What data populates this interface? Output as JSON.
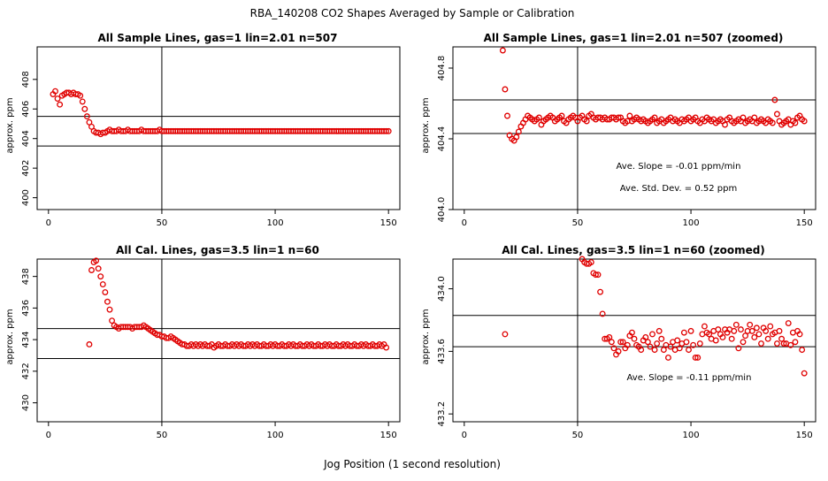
{
  "figure": {
    "title": "RBA_140208  CO2 Shapes Averaged by Sample or Calibration",
    "xlabel": "Jog Position (1 second resolution)"
  },
  "chart_data": [
    {
      "type": "scatter",
      "title": "All Sample Lines, gas=1 lin=2.01 n=507",
      "ylabel": "approx. ppm",
      "xlim": [
        -5,
        155
      ],
      "ylim": [
        399.2,
        410.2
      ],
      "xticks": [
        0,
        50,
        100,
        150
      ],
      "yticks": [
        400,
        402,
        404,
        406,
        408
      ],
      "vline": 50,
      "hlines": [
        403.5,
        405.5
      ],
      "annotations": [],
      "marker_color": "#e00000",
      "series": [
        {
          "name": "sample",
          "x_start": 2,
          "values": [
            407.0,
            407.2,
            406.7,
            406.3,
            406.9,
            407.0,
            407.1,
            407.1,
            407.0,
            407.1,
            407.0,
            407.0,
            406.9,
            406.5,
            406.0,
            405.5,
            405.1,
            404.8,
            404.5,
            404.4,
            404.4,
            404.3,
            404.4,
            404.4,
            404.5,
            404.6,
            404.5,
            404.5,
            404.5,
            404.6,
            404.5,
            404.5,
            404.5,
            404.6,
            404.5,
            404.5,
            404.5,
            404.5,
            404.5,
            404.6,
            404.5,
            404.5,
            404.5,
            404.5,
            404.5,
            404.5,
            404.5,
            404.6,
            404.5,
            404.5,
            404.5,
            404.5,
            404.5,
            404.5,
            404.5,
            404.5,
            404.5,
            404.5,
            404.5,
            404.5,
            404.5,
            404.5,
            404.5,
            404.5,
            404.5,
            404.5,
            404.5,
            404.5,
            404.5,
            404.5,
            404.5,
            404.5,
            404.5,
            404.5,
            404.5,
            404.5,
            404.5,
            404.5,
            404.5,
            404.5,
            404.5,
            404.5,
            404.5,
            404.5,
            404.5,
            404.5,
            404.5,
            404.5,
            404.5,
            404.5,
            404.5,
            404.5,
            404.5,
            404.5,
            404.5,
            404.5,
            404.5,
            404.5,
            404.5,
            404.5,
            404.5,
            404.5,
            404.5,
            404.5,
            404.5,
            404.5,
            404.5,
            404.5,
            404.5,
            404.5,
            404.5,
            404.5,
            404.5,
            404.5,
            404.5,
            404.5,
            404.5,
            404.5,
            404.5,
            404.5,
            404.5,
            404.5,
            404.5,
            404.5,
            404.5,
            404.5,
            404.5,
            404.5,
            404.5,
            404.5,
            404.5,
            404.5,
            404.5,
            404.5,
            404.5,
            404.5,
            404.5,
            404.5,
            404.5,
            404.5,
            404.5,
            404.5,
            404.5,
            404.5,
            404.5,
            404.5,
            404.5,
            404.5,
            404.5
          ]
        }
      ]
    },
    {
      "type": "scatter",
      "title": "All Sample Lines, gas=1 lin=2.01 n=507 (zoomed)",
      "ylabel": "approx. ppm",
      "xlim": [
        -5,
        155
      ],
      "ylim": [
        404.0,
        404.92
      ],
      "xticks": [
        0,
        50,
        100,
        150
      ],
      "yticks": [
        404.0,
        404.4,
        404.8
      ],
      "vline": 50,
      "hlines": [
        404.43,
        404.62
      ],
      "annotations": [
        "Ave. Slope =  -0.01  ppm/min",
        "Ave. Std. Dev. =  0.52  ppm"
      ],
      "marker_color": "#e00000",
      "series": [
        {
          "name": "sample zoomed",
          "x_start": 17,
          "values": [
            404.9,
            404.68,
            404.53,
            404.42,
            404.4,
            404.39,
            404.41,
            404.44,
            404.47,
            404.49,
            404.51,
            404.53,
            404.52,
            404.51,
            404.5,
            404.51,
            404.52,
            404.48,
            404.5,
            404.51,
            404.52,
            404.53,
            404.52,
            404.5,
            404.51,
            404.52,
            404.53,
            404.5,
            404.49,
            404.51,
            404.52,
            404.53,
            404.52,
            404.5,
            404.52,
            404.53,
            404.51,
            404.5,
            404.53,
            404.54,
            404.52,
            404.51,
            404.52,
            404.52,
            404.51,
            404.52,
            404.51,
            404.51,
            404.52,
            404.52,
            404.51,
            404.52,
            404.52,
            404.5,
            404.49,
            404.5,
            404.53,
            404.5,
            404.51,
            404.52,
            404.51,
            404.5,
            404.51,
            404.5,
            404.49,
            404.5,
            404.51,
            404.52,
            404.49,
            404.5,
            404.51,
            404.49,
            404.5,
            404.51,
            404.52,
            404.5,
            404.51,
            404.5,
            404.49,
            404.51,
            404.5,
            404.51,
            404.52,
            404.5,
            404.51,
            404.52,
            404.5,
            404.49,
            404.51,
            404.5,
            404.52,
            404.51,
            404.5,
            404.51,
            404.49,
            404.5,
            404.51,
            404.5,
            404.48,
            404.51,
            404.52,
            404.5,
            404.49,
            404.5,
            404.51,
            404.5,
            404.52,
            404.49,
            404.5,
            404.51,
            404.5,
            404.52,
            404.49,
            404.5,
            404.51,
            404.5,
            404.49,
            404.51,
            404.5,
            404.49,
            404.62,
            404.54,
            404.5,
            404.48,
            404.49,
            404.5,
            404.51,
            404.48,
            404.5,
            404.49,
            404.52,
            404.53,
            404.51,
            404.5
          ]
        }
      ]
    },
    {
      "type": "scatter",
      "title": "All Cal. Lines, gas=3.5 lin=1 n=60",
      "ylabel": "approx. ppm",
      "xlim": [
        -5,
        155
      ],
      "ylim": [
        428.8,
        439.1
      ],
      "xticks": [
        0,
        50,
        100,
        150
      ],
      "yticks": [
        430,
        432,
        434,
        436,
        438
      ],
      "vline": 50,
      "hlines": [
        432.8,
        434.7
      ],
      "annotations": [],
      "marker_color": "#e00000",
      "series": [
        {
          "name": "cal",
          "x_start": 18,
          "values": [
            433.7,
            438.4,
            438.9,
            439.0,
            438.5,
            438.0,
            437.5,
            437.0,
            436.4,
            435.9,
            435.2,
            434.9,
            434.8,
            434.7,
            434.8,
            434.8,
            434.8,
            434.8,
            434.8,
            434.7,
            434.8,
            434.8,
            434.8,
            434.8,
            434.9,
            434.8,
            434.7,
            434.6,
            434.5,
            434.4,
            434.3,
            434.3,
            434.2,
            434.2,
            434.1,
            434.1,
            434.2,
            434.1,
            434.0,
            433.9,
            433.8,
            433.7,
            433.7,
            433.6,
            433.6,
            433.7,
            433.6,
            433.7,
            433.6,
            433.7,
            433.6,
            433.7,
            433.6,
            433.6,
            433.7,
            433.5,
            433.6,
            433.7,
            433.6,
            433.6,
            433.7,
            433.6,
            433.6,
            433.7,
            433.6,
            433.7,
            433.6,
            433.7,
            433.6,
            433.6,
            433.7,
            433.6,
            433.7,
            433.6,
            433.7,
            433.6,
            433.6,
            433.7,
            433.6,
            433.6,
            433.7,
            433.6,
            433.7,
            433.6,
            433.6,
            433.7,
            433.6,
            433.6,
            433.7,
            433.6,
            433.7,
            433.6,
            433.6,
            433.7,
            433.6,
            433.6,
            433.7,
            433.6,
            433.7,
            433.6,
            433.6,
            433.7,
            433.6,
            433.6,
            433.7,
            433.6,
            433.7,
            433.6,
            433.6,
            433.7,
            433.6,
            433.6,
            433.7,
            433.6,
            433.7,
            433.6,
            433.6,
            433.7,
            433.6,
            433.6,
            433.7,
            433.6,
            433.7,
            433.6,
            433.6,
            433.7,
            433.6,
            433.6,
            433.7,
            433.6,
            433.7,
            433.5
          ]
        }
      ]
    },
    {
      "type": "scatter",
      "title": "All Cal. Lines, gas=3.5 lin=1 n=60 (zoomed)",
      "ylabel": "approx. ppm",
      "xlim": [
        -5,
        155
      ],
      "ylim": [
        433.15,
        434.19
      ],
      "xticks": [
        0,
        50,
        100,
        150
      ],
      "yticks": [
        433.2,
        433.6,
        434.0
      ],
      "vline": 50,
      "hlines": [
        433.63,
        433.83
      ],
      "annotations": [
        "Ave. Slope =  -0.11  ppm/min"
      ],
      "marker_color": "#e00000",
      "series": [
        {
          "name": "cal zoomed",
          "points": [
            [
              18,
              433.71
            ],
            [
              52,
              434.19
            ],
            [
              53,
              434.17
            ],
            [
              54,
              434.16
            ],
            [
              55,
              434.16
            ],
            [
              56,
              434.17
            ],
            [
              57,
              434.1
            ],
            [
              58,
              434.09
            ],
            [
              59,
              434.09
            ],
            [
              60,
              433.98
            ],
            [
              61,
              433.84
            ],
            [
              62,
              433.68
            ],
            [
              63,
              433.68
            ],
            [
              64,
              433.69
            ],
            [
              65,
              433.66
            ],
            [
              66,
              433.62
            ],
            [
              67,
              433.58
            ],
            [
              68,
              433.6
            ],
            [
              69,
              433.66
            ],
            [
              70,
              433.66
            ],
            [
              71,
              433.62
            ],
            [
              72,
              433.64
            ],
            [
              73,
              433.7
            ],
            [
              74,
              433.72
            ],
            [
              75,
              433.68
            ],
            [
              76,
              433.64
            ],
            [
              77,
              433.63
            ],
            [
              78,
              433.61
            ],
            [
              79,
              433.67
            ],
            [
              80,
              433.69
            ],
            [
              81,
              433.66
            ],
            [
              82,
              433.63
            ],
            [
              83,
              433.71
            ],
            [
              84,
              433.61
            ],
            [
              85,
              433.65
            ],
            [
              86,
              433.73
            ],
            [
              87,
              433.68
            ],
            [
              88,
              433.61
            ],
            [
              89,
              433.64
            ],
            [
              90,
              433.56
            ],
            [
              91,
              433.63
            ],
            [
              92,
              433.66
            ],
            [
              93,
              433.61
            ],
            [
              94,
              433.67
            ],
            [
              95,
              433.62
            ],
            [
              96,
              433.65
            ],
            [
              97,
              433.72
            ],
            [
              98,
              433.66
            ],
            [
              99,
              433.61
            ],
            [
              100,
              433.73
            ],
            [
              101,
              433.64
            ],
            [
              102,
              433.56
            ],
            [
              103,
              433.56
            ],
            [
              104,
              433.65
            ],
            [
              105,
              433.71
            ],
            [
              106,
              433.76
            ],
            [
              107,
              433.72
            ],
            [
              108,
              433.71
            ],
            [
              109,
              433.68
            ],
            [
              110,
              433.73
            ],
            [
              111,
              433.67
            ],
            [
              112,
              433.74
            ],
            [
              113,
              433.71
            ],
            [
              114,
              433.69
            ],
            [
              115,
              433.74
            ],
            [
              116,
              433.72
            ],
            [
              117,
              433.74
            ],
            [
              118,
              433.68
            ],
            [
              119,
              433.73
            ],
            [
              120,
              433.77
            ],
            [
              121,
              433.62
            ],
            [
              122,
              433.74
            ],
            [
              123,
              433.66
            ],
            [
              124,
              433.7
            ],
            [
              125,
              433.73
            ],
            [
              126,
              433.77
            ],
            [
              127,
              433.73
            ],
            [
              128,
              433.69
            ],
            [
              129,
              433.75
            ],
            [
              130,
              433.71
            ],
            [
              131,
              433.65
            ],
            [
              132,
              433.75
            ],
            [
              133,
              433.73
            ],
            [
              134,
              433.68
            ],
            [
              135,
              433.76
            ],
            [
              136,
              433.71
            ],
            [
              137,
              433.72
            ],
            [
              138,
              433.65
            ],
            [
              139,
              433.73
            ],
            [
              140,
              433.68
            ],
            [
              141,
              433.65
            ],
            [
              142,
              433.65
            ],
            [
              143,
              433.78
            ],
            [
              144,
              433.64
            ],
            [
              145,
              433.72
            ],
            [
              146,
              433.66
            ],
            [
              147,
              433.73
            ],
            [
              148,
              433.71
            ],
            [
              149,
              433.61
            ],
            [
              150,
              433.46
            ]
          ]
        }
      ]
    }
  ]
}
